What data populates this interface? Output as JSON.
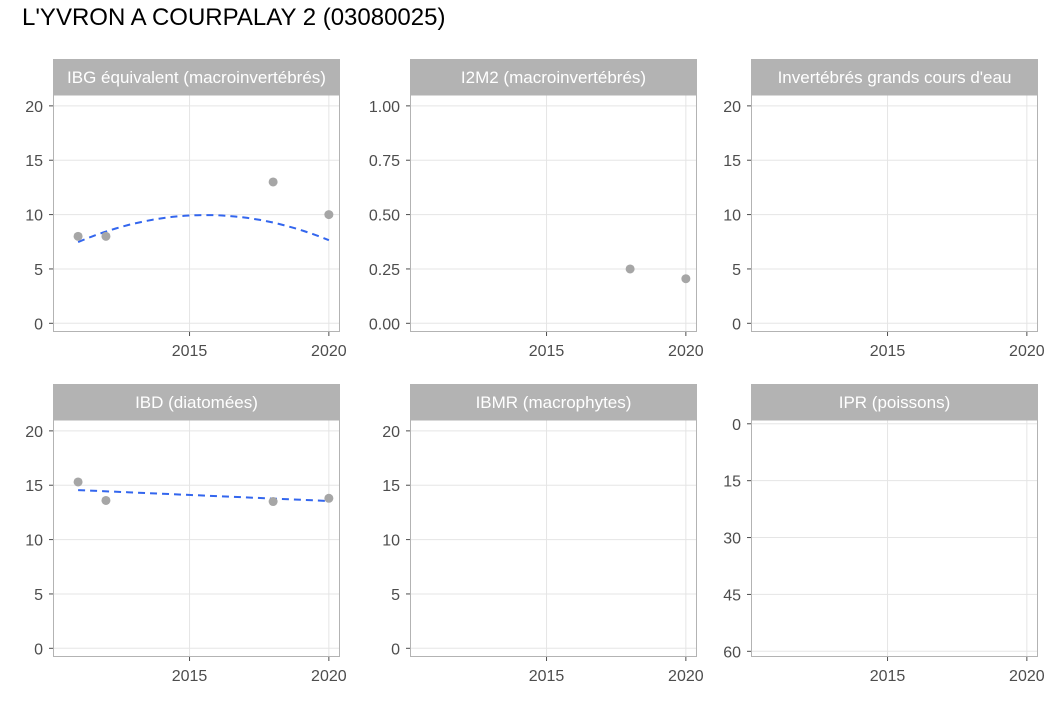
{
  "page": {
    "title": "L'YVRON A COURPALAY 2 (03080025)"
  },
  "style": {
    "strip_background": "#b3b3b3",
    "strip_text": "#ffffff",
    "panel_border": "#b3b3b3",
    "grid": "#e5e5e5",
    "tick_text": "#4d4d4d",
    "point": "#a6a6a6",
    "trend": "#3366ee"
  },
  "chart_data": [
    {
      "type": "scatter",
      "title": "IBG équivalent (macroinvertébrés)",
      "xlim": [
        2010.1,
        2020.4
      ],
      "xticks": [
        2015,
        2020
      ],
      "ylim": [
        -0.8,
        21
      ],
      "yticks": [
        0,
        5,
        10,
        15,
        20
      ],
      "yticklabels": [
        "0",
        "5",
        "10",
        "15",
        "20"
      ],
      "reverse_y": false,
      "points": [
        {
          "x": 2011,
          "y": 8
        },
        {
          "x": 2012,
          "y": 8
        },
        {
          "x": 2018,
          "y": 13
        },
        {
          "x": 2020,
          "y": 10
        }
      ],
      "trend": {
        "type": "quadratic",
        "x_from": 2011,
        "x_to": 2020,
        "coef": [
          7.47,
          1.085,
          -0.1184
        ],
        "x0": 2011
      }
    },
    {
      "type": "scatter",
      "title": "I2M2 (macroinvertébrés)",
      "xlim": [
        2010.1,
        2020.4
      ],
      "xticks": [
        2015,
        2020
      ],
      "ylim": [
        -0.04,
        1.05
      ],
      "yticks": [
        0,
        0.25,
        0.5,
        0.75,
        1
      ],
      "yticklabels": [
        "0.00",
        "0.25",
        "0.50",
        "0.75",
        "1.00"
      ],
      "reverse_y": false,
      "points": [
        {
          "x": 2018,
          "y": 0.25
        },
        {
          "x": 2020,
          "y": 0.205
        }
      ]
    },
    {
      "type": "scatter",
      "title": "Invertébrés grands cours d'eau",
      "xlim": [
        2010.1,
        2020.4
      ],
      "xticks": [
        2015,
        2020
      ],
      "ylim": [
        -0.8,
        21
      ],
      "yticks": [
        0,
        5,
        10,
        15,
        20
      ],
      "yticklabels": [
        "0",
        "5",
        "10",
        "15",
        "20"
      ],
      "reverse_y": false,
      "points": []
    },
    {
      "type": "scatter",
      "title": "IBD (diatomées)",
      "xlim": [
        2010.1,
        2020.4
      ],
      "xticks": [
        2015,
        2020
      ],
      "ylim": [
        -0.8,
        21
      ],
      "yticks": [
        0,
        5,
        10,
        15,
        20
      ],
      "yticklabels": [
        "0",
        "5",
        "10",
        "15",
        "20"
      ],
      "reverse_y": false,
      "points": [
        {
          "x": 2011,
          "y": 15.3
        },
        {
          "x": 2012,
          "y": 13.6
        },
        {
          "x": 2018,
          "y": 13.5
        },
        {
          "x": 2020,
          "y": 13.8
        }
      ],
      "trend": {
        "type": "linear",
        "x_from": 2011,
        "x_to": 2020,
        "y_from": 14.55,
        "y_to": 13.55
      }
    },
    {
      "type": "scatter",
      "title": "IBMR (macrophytes)",
      "xlim": [
        2010.1,
        2020.4
      ],
      "xticks": [
        2015,
        2020
      ],
      "ylim": [
        -0.8,
        21
      ],
      "yticks": [
        0,
        5,
        10,
        15,
        20
      ],
      "yticklabels": [
        "0",
        "5",
        "10",
        "15",
        "20"
      ],
      "reverse_y": false,
      "points": []
    },
    {
      "type": "scatter",
      "title": "IPR (poissons)",
      "xlim": [
        2010.1,
        2020.4
      ],
      "xticks": [
        2015,
        2020
      ],
      "ylim": [
        -1,
        61.5
      ],
      "yticks": [
        0,
        15,
        30,
        45,
        60
      ],
      "yticklabels": [
        "0",
        "15",
        "30",
        "45",
        "60"
      ],
      "reverse_y": true,
      "points": []
    }
  ]
}
